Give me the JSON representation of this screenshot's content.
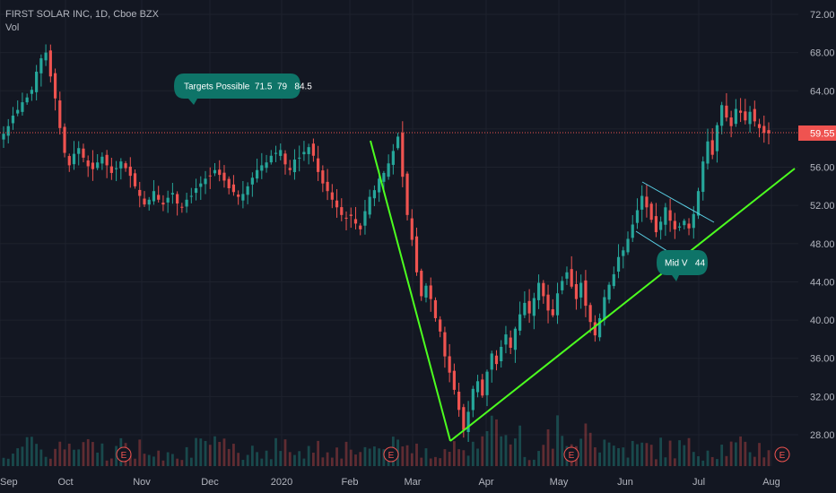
{
  "header": {
    "symbol_line": "FIRST SOLAR INC, 1D, Cboe BZX",
    "indicator": "Vol"
  },
  "colors": {
    "background": "#131722",
    "up": "#26a69a",
    "down": "#ef5350",
    "trendline": "#4cff1f",
    "channel": "#5ad1e6",
    "bubble": "#0e7468",
    "price_line": "#ef5350",
    "grid": "#1e222d"
  },
  "chart_data": {
    "type": "candlestick",
    "title": "FIRST SOLAR INC, 1D, Cboe BZX",
    "ylim": [
      24.6,
      74.0
    ],
    "y_ticks": [
      "72.00",
      "68.00",
      "64.00",
      "60.00",
      "56.00",
      "52.00",
      "48.00",
      "44.00",
      "40.00",
      "36.00",
      "32.00",
      "28.00"
    ],
    "x_ticks": [
      "Sep",
      "Oct",
      "Nov",
      "Dec",
      "2020",
      "Feb",
      "Mar",
      "Apr",
      "May",
      "Jun",
      "Jul",
      "Aug"
    ],
    "last_price": "59.55",
    "earnings_markers": [
      "E",
      "E",
      "E",
      "E"
    ],
    "candle_closes": [
      59.5,
      60.3,
      61.4,
      62.0,
      62.8,
      63.3,
      64.1,
      66.0,
      67.4,
      68.0,
      65.5,
      63.2,
      60.1,
      57.5,
      56.2,
      57.4,
      58.0,
      57.0,
      56.1,
      55.8,
      56.5,
      57.1,
      56.2,
      55.4,
      55.9,
      56.6,
      55.9,
      55.1,
      54.0,
      53.0,
      52.1,
      52.6,
      53.5,
      52.6,
      52.1,
      52.8,
      53.3,
      52.2,
      51.8,
      52.6,
      53.0,
      53.8,
      54.3,
      54.8,
      55.1,
      55.7,
      55.2,
      54.6,
      53.8,
      53.4,
      52.9,
      53.2,
      54.0,
      54.9,
      55.7,
      56.2,
      56.5,
      57.2,
      57.5,
      57.8,
      56.3,
      55.7,
      56.8,
      57.0,
      57.6,
      58.1,
      57.2,
      55.5,
      54.3,
      53.5,
      52.6,
      51.8,
      51.0,
      50.7,
      50.9,
      50.1,
      49.5,
      51.4,
      52.9,
      53.6,
      54.8,
      55.4,
      56.4,
      57.7,
      59.2,
      55.0,
      51.0,
      48.4,
      45.0,
      42.5,
      43.6,
      42.2,
      40.2,
      38.8,
      36.2,
      34.5,
      32.7,
      30.6,
      28.5,
      30.4,
      32.8,
      33.6,
      32.1,
      34.6,
      36.5,
      35.4,
      37.2,
      38.5,
      37.1,
      39.1,
      40.6,
      41.8,
      40.7,
      42.3,
      43.9,
      42.5,
      41.0,
      40.5,
      42.8,
      44.1,
      45.0,
      43.5,
      42.2,
      43.9,
      41.5,
      39.8,
      38.4,
      40.2,
      42.4,
      43.7,
      44.8,
      46.6,
      47.3,
      48.5,
      50.0,
      51.5,
      53.0,
      51.8,
      50.5,
      49.2,
      50.3,
      51.8,
      50.4,
      49.5,
      49.8,
      50.4,
      49.6,
      51.1,
      53.5,
      56.6,
      58.7,
      57.3,
      60.4,
      62.5,
      61.2,
      60.3,
      62.1,
      61.7,
      60.9,
      61.8,
      60.8,
      60.1,
      59.6,
      59.55
    ],
    "volume_note": "relative volume bars along the bottom of the price pane"
  },
  "annotations": {
    "targets_label": "Targets Possible  71.5  79   84.5",
    "midv_label": "Mid V   44"
  }
}
